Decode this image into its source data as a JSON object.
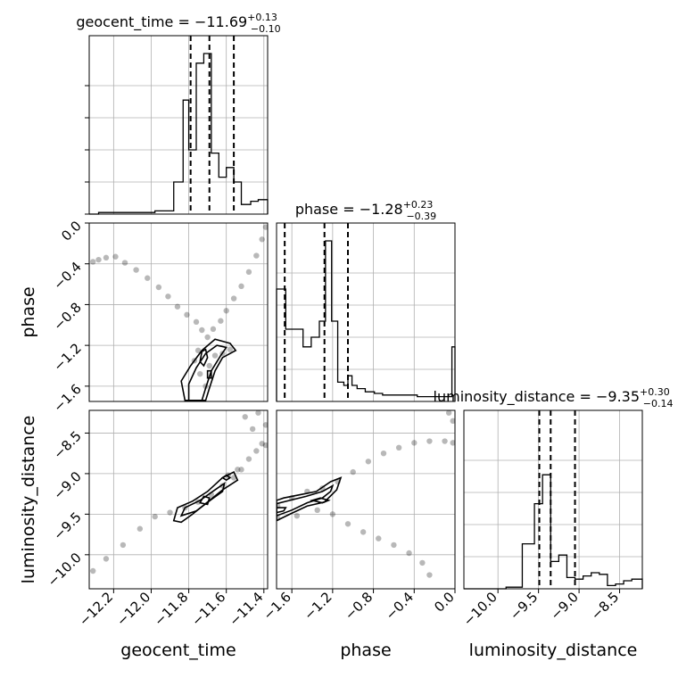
{
  "chart_data": {
    "type": "corner",
    "parameters": [
      "geocent_time",
      "phase",
      "luminosity_distance"
    ],
    "axis_labels": {
      "geocent_time": "geocent_time",
      "phase": "phase",
      "luminosity_distance": "luminosity_distance"
    },
    "ranges": {
      "geocent_time": [
        -12.33,
        -11.38
      ],
      "phase": [
        -1.75,
        0.0
      ],
      "luminosity_distance": [
        -10.42,
        -8.22
      ]
    },
    "ticks": {
      "geocent_time": [
        -12.2,
        -12.0,
        -11.8,
        -11.6,
        -11.4
      ],
      "phase": [
        -1.6,
        -1.2,
        -0.8,
        -0.4,
        0.0
      ],
      "luminosity_distance": [
        -10.0,
        -9.5,
        -9.0,
        -8.5
      ]
    },
    "tick_labels": {
      "geocent_time": [
        "−12.2",
        "−12.0",
        "−11.8",
        "−11.6",
        "−11.4"
      ],
      "phase": [
        "−1.6",
        "−1.2",
        "−0.8",
        "−0.4",
        "0.0"
      ],
      "luminosity_distance": [
        "−10.0",
        "−9.5",
        "−9.0",
        "−8.5"
      ]
    },
    "titles": {
      "geocent_time": {
        "text": "geocent_time = −11.69",
        "sup": "+0.13",
        "sub": "−0.10"
      },
      "phase": {
        "text": "phase = −1.28",
        "sup": "+0.23",
        "sub": "−0.39"
      },
      "luminosity_distance": {
        "text": "luminosity_distance = −9.35",
        "sup": "+0.30",
        "sub": "−0.14"
      }
    },
    "quantiles": {
      "geocent_time": [
        -11.79,
        -11.69,
        -11.56
      ],
      "phase": [
        -1.67,
        -1.28,
        -1.05
      ],
      "luminosity_distance": [
        -9.49,
        -9.35,
        -9.05
      ]
    },
    "histograms": {
      "geocent_time": {
        "edges": [
          -12.33,
          -12.28,
          -12.23,
          -12.18,
          -12.13,
          -12.08,
          -12.03,
          -11.98,
          -11.93,
          -11.88,
          -11.83,
          -11.8,
          -11.76,
          -11.72,
          -11.68,
          -11.64,
          -11.6,
          -11.56,
          -11.52,
          -11.47,
          -11.43,
          -11.38
        ],
        "counts": [
          0.0,
          0.01,
          0.01,
          0.01,
          0.01,
          0.01,
          0.01,
          0.02,
          0.02,
          0.2,
          0.71,
          0.4,
          0.94,
          1.0,
          0.38,
          0.23,
          0.29,
          0.2,
          0.06,
          0.08,
          0.09
        ]
      },
      "phase": {
        "edges": [
          -1.75,
          -1.66,
          -1.58,
          -1.49,
          -1.41,
          -1.33,
          -1.27,
          -1.21,
          -1.15,
          -1.09,
          -1.05,
          -1.01,
          -0.96,
          -0.88,
          -0.79,
          -0.71,
          -0.62,
          -0.54,
          -0.45,
          -0.37,
          -0.28,
          -0.2,
          -0.11,
          -0.03,
          0.0
        ],
        "counts": [
          0.7,
          0.45,
          0.45,
          0.34,
          0.4,
          0.5,
          1.0,
          0.5,
          0.12,
          0.1,
          0.16,
          0.1,
          0.08,
          0.06,
          0.05,
          0.04,
          0.04,
          0.04,
          0.04,
          0.03,
          0.03,
          0.03,
          0.03,
          0.34
        ]
      },
      "luminosity_distance": {
        "edges": [
          -10.42,
          -10.25,
          -10.1,
          -9.9,
          -9.7,
          -9.55,
          -9.45,
          -9.35,
          -9.25,
          -9.15,
          -9.05,
          -8.95,
          -8.85,
          -8.75,
          -8.65,
          -8.55,
          -8.45,
          -8.35,
          -8.22
        ],
        "counts": [
          0.0,
          0.0,
          0.0,
          0.01,
          0.28,
          0.53,
          0.71,
          0.17,
          0.21,
          0.07,
          0.06,
          0.08,
          0.1,
          0.09,
          0.02,
          0.03,
          0.05,
          0.06
        ]
      }
    },
    "pairs": [
      {
        "x": "geocent_time",
        "y": "phase",
        "samples": [
          [
            -12.31,
            -0.38
          ],
          [
            -12.28,
            -0.36
          ],
          [
            -12.24,
            -0.34
          ],
          [
            -12.19,
            -0.33
          ],
          [
            -12.14,
            -0.39
          ],
          [
            -12.08,
            -0.46
          ],
          [
            -12.02,
            -0.54
          ],
          [
            -11.96,
            -0.63
          ],
          [
            -11.91,
            -0.72
          ],
          [
            -11.86,
            -0.82
          ],
          [
            -11.81,
            -0.9
          ],
          [
            -11.76,
            -0.97
          ],
          [
            -11.73,
            -1.05
          ],
          [
            -11.7,
            -1.12
          ],
          [
            -11.67,
            -1.04
          ],
          [
            -11.63,
            -0.96
          ],
          [
            -11.6,
            -0.86
          ],
          [
            -11.56,
            -0.74
          ],
          [
            -11.52,
            -0.62
          ],
          [
            -11.48,
            -0.48
          ],
          [
            -11.44,
            -0.32
          ],
          [
            -11.41,
            -0.16
          ],
          [
            -11.39,
            -0.04
          ],
          [
            -11.77,
            -1.35
          ],
          [
            -11.74,
            -1.48
          ],
          [
            -11.71,
            -1.6
          ],
          [
            -11.75,
            -1.25
          ],
          [
            -11.69,
            -1.4
          ],
          [
            -11.66,
            -1.3
          ],
          [
            -11.62,
            -1.28
          ],
          [
            -11.58,
            -1.24
          ]
        ],
        "contours": [
          [
            [
              -11.82,
              -1.74
            ],
            [
              -11.84,
              -1.55
            ],
            [
              -11.79,
              -1.4
            ],
            [
              -11.73,
              -1.25
            ],
            [
              -11.66,
              -1.14
            ],
            [
              -11.58,
              -1.18
            ],
            [
              -11.55,
              -1.25
            ],
            [
              -11.62,
              -1.32
            ],
            [
              -11.66,
              -1.45
            ],
            [
              -11.69,
              -1.62
            ],
            [
              -11.71,
              -1.74
            ]
          ],
          [
            [
              -11.8,
              -1.74
            ],
            [
              -11.8,
              -1.58
            ],
            [
              -11.76,
              -1.42
            ],
            [
              -11.71,
              -1.28
            ],
            [
              -11.65,
              -1.2
            ],
            [
              -11.6,
              -1.22
            ],
            [
              -11.63,
              -1.3
            ],
            [
              -11.68,
              -1.45
            ],
            [
              -11.71,
              -1.62
            ],
            [
              -11.73,
              -1.74
            ]
          ],
          [
            [
              -11.74,
              -1.36
            ],
            [
              -11.73,
              -1.26
            ],
            [
              -11.71,
              -1.24
            ],
            [
              -11.7,
              -1.32
            ],
            [
              -11.72,
              -1.4
            ]
          ],
          [
            [
              -11.7,
              -1.45
            ],
            [
              -11.7,
              -1.52
            ],
            [
              -11.68,
              -1.52
            ],
            [
              -11.68,
              -1.45
            ]
          ]
        ]
      },
      {
        "x": "geocent_time",
        "y": "luminosity_distance",
        "samples": [
          [
            -12.31,
            -10.2
          ],
          [
            -12.24,
            -10.05
          ],
          [
            -12.15,
            -9.88
          ],
          [
            -12.06,
            -9.68
          ],
          [
            -11.98,
            -9.53
          ],
          [
            -11.9,
            -9.48
          ],
          [
            -11.82,
            -9.42
          ],
          [
            -11.75,
            -9.35
          ],
          [
            -11.68,
            -9.26
          ],
          [
            -11.62,
            -9.15
          ],
          [
            -11.56,
            -9.05
          ],
          [
            -11.52,
            -8.95
          ],
          [
            -11.48,
            -8.82
          ],
          [
            -11.44,
            -8.72
          ],
          [
            -11.41,
            -8.63
          ],
          [
            -11.46,
            -8.45
          ],
          [
            -11.5,
            -8.3
          ],
          [
            -11.43,
            -8.25
          ],
          [
            -11.39,
            -8.4
          ],
          [
            -11.39,
            -8.65
          ],
          [
            -11.54,
            -8.95
          ],
          [
            -11.59,
            -9.02
          ]
        ],
        "contours": [
          [
            [
              -11.88,
              -9.58
            ],
            [
              -11.86,
              -9.42
            ],
            [
              -11.78,
              -9.34
            ],
            [
              -11.7,
              -9.22
            ],
            [
              -11.62,
              -9.05
            ],
            [
              -11.56,
              -8.98
            ],
            [
              -11.54,
              -9.08
            ],
            [
              -11.62,
              -9.2
            ],
            [
              -11.7,
              -9.35
            ],
            [
              -11.78,
              -9.5
            ],
            [
              -11.84,
              -9.6
            ]
          ],
          [
            [
              -11.84,
              -9.52
            ],
            [
              -11.82,
              -9.42
            ],
            [
              -11.74,
              -9.33
            ],
            [
              -11.66,
              -9.2
            ],
            [
              -11.61,
              -9.12
            ],
            [
              -11.62,
              -9.22
            ],
            [
              -11.68,
              -9.32
            ],
            [
              -11.76,
              -9.46
            ]
          ],
          [
            [
              -11.74,
              -9.36
            ],
            [
              -11.72,
              -9.28
            ],
            [
              -11.69,
              -9.3
            ],
            [
              -11.7,
              -9.38
            ]
          ],
          [
            [
              -11.6,
              -9.08
            ],
            [
              -11.58,
              -9.05
            ],
            [
              -11.6,
              -9.02
            ],
            [
              -11.62,
              -9.05
            ]
          ]
        ]
      },
      {
        "x": "phase",
        "y": "luminosity_distance",
        "samples": [
          [
            -1.74,
            -9.4
          ],
          [
            -1.6,
            -9.3
          ],
          [
            -1.45,
            -9.22
          ],
          [
            -1.3,
            -9.18
          ],
          [
            -1.15,
            -9.1
          ],
          [
            -1.0,
            -8.98
          ],
          [
            -0.85,
            -8.85
          ],
          [
            -0.7,
            -8.75
          ],
          [
            -0.55,
            -8.68
          ],
          [
            -0.4,
            -8.62
          ],
          [
            -0.25,
            -8.6
          ],
          [
            -0.1,
            -8.6
          ],
          [
            -0.02,
            -8.62
          ],
          [
            -1.74,
            -9.55
          ],
          [
            -1.55,
            -9.52
          ],
          [
            -1.35,
            -9.45
          ],
          [
            -1.2,
            -9.5
          ],
          [
            -1.05,
            -9.62
          ],
          [
            -0.9,
            -9.72
          ],
          [
            -0.75,
            -9.8
          ],
          [
            -0.6,
            -9.88
          ],
          [
            -0.45,
            -9.98
          ],
          [
            -0.32,
            -10.1
          ],
          [
            -0.25,
            -10.25
          ],
          [
            -0.06,
            -8.25
          ],
          [
            -0.02,
            -8.35
          ]
        ],
        "contours": [
          [
            [
              -1.75,
              -9.58
            ],
            [
              -1.62,
              -9.5
            ],
            [
              -1.45,
              -9.4
            ],
            [
              -1.28,
              -9.35
            ],
            [
              -1.16,
              -9.2
            ],
            [
              -1.12,
              -9.05
            ],
            [
              -1.22,
              -9.1
            ],
            [
              -1.36,
              -9.22
            ],
            [
              -1.52,
              -9.26
            ],
            [
              -1.68,
              -9.3
            ],
            [
              -1.75,
              -9.33
            ]
          ],
          [
            [
              -1.75,
              -9.52
            ],
            [
              -1.6,
              -9.45
            ],
            [
              -1.45,
              -9.36
            ],
            [
              -1.3,
              -9.3
            ],
            [
              -1.22,
              -9.22
            ],
            [
              -1.2,
              -9.15
            ],
            [
              -1.3,
              -9.22
            ],
            [
              -1.46,
              -9.28
            ],
            [
              -1.62,
              -9.33
            ],
            [
              -1.75,
              -9.37
            ]
          ],
          [
            [
              -1.4,
              -9.33
            ],
            [
              -1.32,
              -9.3
            ],
            [
              -1.24,
              -9.33
            ],
            [
              -1.3,
              -9.36
            ]
          ],
          [
            [
              -1.75,
              -9.48
            ],
            [
              -1.68,
              -9.46
            ],
            [
              -1.66,
              -9.42
            ],
            [
              -1.75,
              -9.42
            ]
          ]
        ]
      }
    ]
  }
}
